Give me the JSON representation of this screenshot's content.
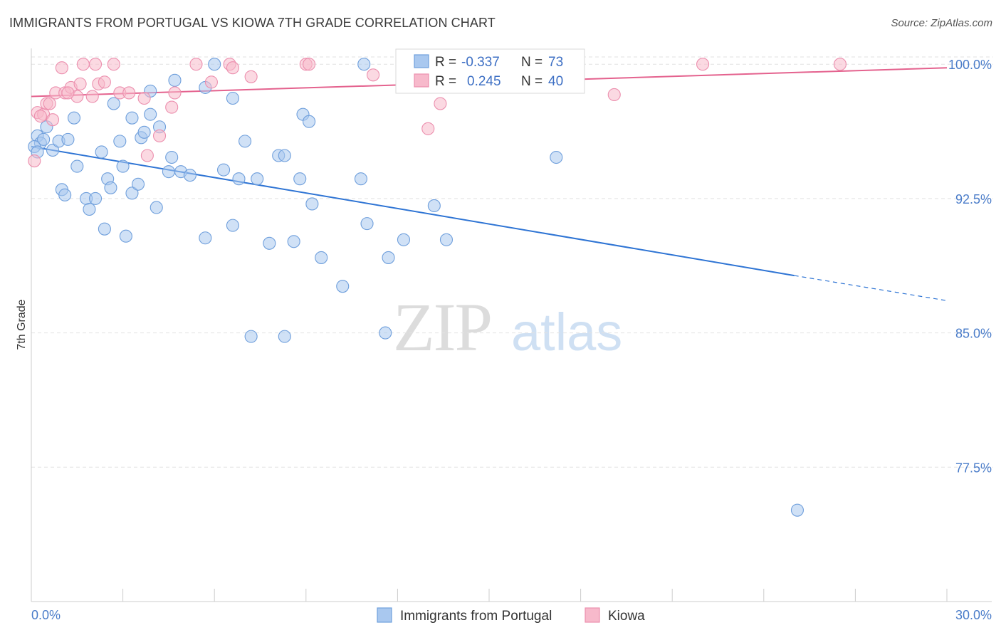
{
  "title": "IMMIGRANTS FROM PORTUGAL VS KIOWA 7TH GRADE CORRELATION CHART",
  "source": "Source: ZipAtlas.com",
  "watermark": {
    "zip": "ZIP",
    "atlas": "atlas"
  },
  "colors": {
    "blue_fill": "#a9c8ef",
    "blue_stroke": "#6f9fdc",
    "blue_line": "#2e74d4",
    "pink_fill": "#f7b9cb",
    "pink_stroke": "#ec8fae",
    "pink_line": "#e4628e",
    "grid": "#e2e2e2",
    "axis": "#cccccc",
    "tick_text": "#4a7cc9"
  },
  "legend": {
    "series1": {
      "r_label": "R =",
      "r_value": "-0.337",
      "n_label": "N =",
      "n_value": "73"
    },
    "series2": {
      "r_label": "R =",
      "r_value": "0.245",
      "n_label": "N =",
      "n_value": "40"
    }
  },
  "chart_data": {
    "type": "scatter",
    "title": "IMMIGRANTS FROM PORTUGAL VS KIOWA 7TH GRADE CORRELATION CHART",
    "xlabel": "",
    "ylabel": "7th Grade",
    "xlim": [
      0,
      30
    ],
    "ylim": [
      70,
      101.2
    ],
    "x_tick_labels": [
      "0.0%",
      "30.0%"
    ],
    "y_ticks": [
      77.5,
      85.0,
      92.5,
      100.0
    ],
    "y_tick_labels": [
      "77.5%",
      "85.0%",
      "92.5%",
      "100.0%"
    ],
    "grid": true,
    "legend_position": "top-center",
    "series": [
      {
        "name": "Immigrants from Portugal",
        "color": "#a9c8ef",
        "r": -0.337,
        "n": 73,
        "trend": {
          "x0": 0.0,
          "y0": 95.4,
          "x1": 25.0,
          "y1": 88.2,
          "dash_to_x": 30.0,
          "dash_to_y": 86.8
        },
        "points": [
          [
            0.2,
            96.0
          ],
          [
            0.3,
            95.6
          ],
          [
            0.4,
            95.8
          ],
          [
            0.5,
            96.5
          ],
          [
            0.7,
            95.2
          ],
          [
            0.9,
            95.7
          ],
          [
            1.2,
            95.8
          ],
          [
            1.0,
            93.0
          ],
          [
            1.1,
            92.7
          ],
          [
            1.4,
            97.0
          ],
          [
            1.8,
            92.5
          ],
          [
            1.9,
            91.9
          ],
          [
            2.1,
            92.5
          ],
          [
            1.5,
            94.3
          ],
          [
            2.3,
            95.1
          ],
          [
            2.4,
            90.8
          ],
          [
            2.5,
            93.6
          ],
          [
            2.6,
            93.1
          ],
          [
            2.7,
            97.8
          ],
          [
            2.9,
            95.7
          ],
          [
            3.0,
            94.3
          ],
          [
            3.1,
            90.4
          ],
          [
            3.3,
            92.8
          ],
          [
            3.3,
            97.0
          ],
          [
            3.5,
            93.3
          ],
          [
            3.6,
            95.9
          ],
          [
            3.7,
            96.2
          ],
          [
            3.9,
            97.2
          ],
          [
            3.9,
            98.5
          ],
          [
            4.1,
            92.0
          ],
          [
            4.2,
            96.5
          ],
          [
            4.5,
            94.0
          ],
          [
            4.6,
            94.8
          ],
          [
            4.7,
            99.1
          ],
          [
            4.9,
            94.0
          ],
          [
            5.2,
            93.8
          ],
          [
            5.7,
            90.3
          ],
          [
            5.7,
            98.7
          ],
          [
            6.0,
            100.0
          ],
          [
            6.3,
            94.1
          ],
          [
            6.6,
            91.0
          ],
          [
            6.6,
            98.1
          ],
          [
            6.8,
            93.6
          ],
          [
            7.0,
            95.7
          ],
          [
            7.2,
            84.8
          ],
          [
            7.4,
            93.6
          ],
          [
            7.8,
            90.0
          ],
          [
            8.1,
            94.9
          ],
          [
            8.3,
            94.9
          ],
          [
            8.3,
            84.8
          ],
          [
            8.6,
            90.1
          ],
          [
            8.8,
            93.6
          ],
          [
            8.9,
            97.2
          ],
          [
            9.1,
            96.8
          ],
          [
            9.2,
            92.2
          ],
          [
            9.5,
            89.2
          ],
          [
            10.2,
            87.6
          ],
          [
            10.8,
            93.6
          ],
          [
            10.9,
            100.0
          ],
          [
            11.0,
            91.1
          ],
          [
            11.6,
            85.0
          ],
          [
            11.7,
            89.2
          ],
          [
            12.2,
            90.2
          ],
          [
            13.2,
            92.1
          ],
          [
            13.6,
            90.2
          ],
          [
            13.8,
            100.0
          ],
          [
            14.0,
            100.0
          ],
          [
            15.0,
            100.0
          ],
          [
            16.7,
            100.0
          ],
          [
            17.2,
            94.8
          ],
          [
            25.1,
            75.1
          ],
          [
            0.1,
            95.4
          ],
          [
            0.2,
            95.1
          ]
        ]
      },
      {
        "name": "Kiowa",
        "color": "#f7b9cb",
        "r": 0.245,
        "n": 40,
        "trend": {
          "x0": 0.0,
          "y0": 98.2,
          "x1": 30.0,
          "y1": 99.8
        },
        "points": [
          [
            0.1,
            94.6
          ],
          [
            0.2,
            97.3
          ],
          [
            0.4,
            97.2
          ],
          [
            0.5,
            97.8
          ],
          [
            0.6,
            97.8
          ],
          [
            0.7,
            96.9
          ],
          [
            0.8,
            98.4
          ],
          [
            1.0,
            99.8
          ],
          [
            1.1,
            98.4
          ],
          [
            1.3,
            98.7
          ],
          [
            1.5,
            98.2
          ],
          [
            1.6,
            98.9
          ],
          [
            1.7,
            100.0
          ],
          [
            2.0,
            98.2
          ],
          [
            2.1,
            100.0
          ],
          [
            2.2,
            98.9
          ],
          [
            2.4,
            99.0
          ],
          [
            2.7,
            100.0
          ],
          [
            2.9,
            98.4
          ],
          [
            3.2,
            98.4
          ],
          [
            3.7,
            98.1
          ],
          [
            3.8,
            94.9
          ],
          [
            4.2,
            96.0
          ],
          [
            4.6,
            97.6
          ],
          [
            4.7,
            98.4
          ],
          [
            5.4,
            100.0
          ],
          [
            5.9,
            99.0
          ],
          [
            6.5,
            100.0
          ],
          [
            6.6,
            99.8
          ],
          [
            7.2,
            99.3
          ],
          [
            9.0,
            100.0
          ],
          [
            9.1,
            100.0
          ],
          [
            11.2,
            99.4
          ],
          [
            13.0,
            96.4
          ],
          [
            13.4,
            97.8
          ],
          [
            19.1,
            98.3
          ],
          [
            22.0,
            100.0
          ],
          [
            26.5,
            100.0
          ],
          [
            1.2,
            98.4
          ],
          [
            0.3,
            97.1
          ]
        ]
      }
    ]
  },
  "bottom_legend": {
    "item1": "Immigrants from Portugal",
    "item2": "Kiowa"
  }
}
